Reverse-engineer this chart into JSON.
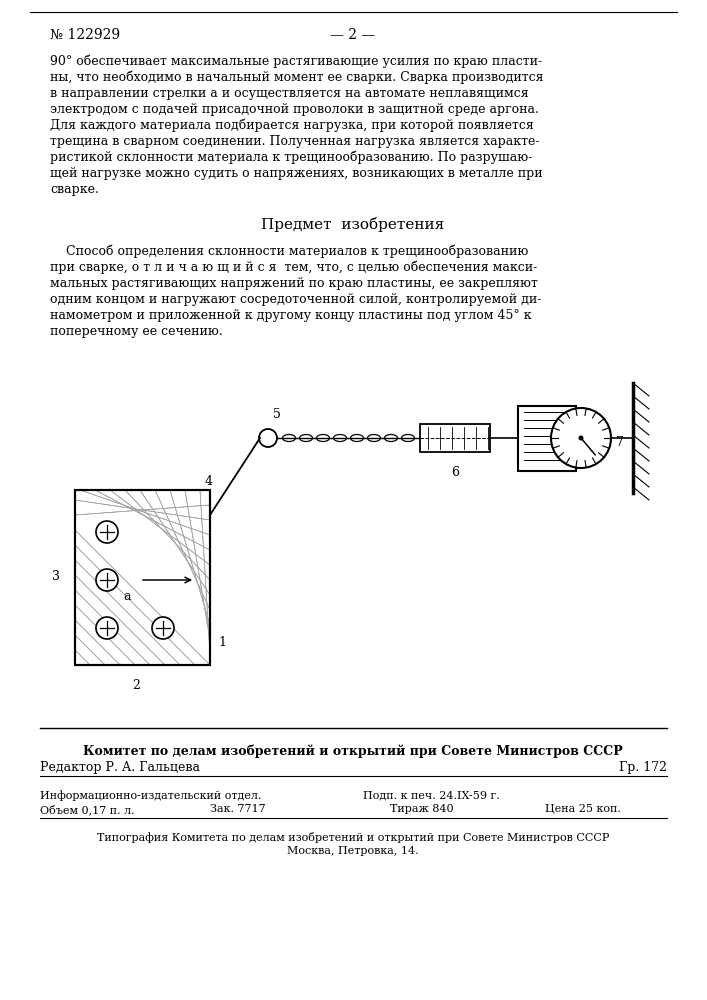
{
  "bg_color": "#ffffff",
  "header_number": "№ 122929",
  "header_page": "— 2 —",
  "paragraph1_lines": [
    "90° обеспечивает максимальные растягивающие усилия по краю пласти-",
    "ны, что необходимо в начальный момент ее сварки. Сварка производится",
    "в направлении стрелки а и осуществляется на автомате неплавящимся",
    "электродом с подачей присадочной проволоки в защитной среде аргона.",
    "Для каждого материала подбирается нагрузка, при которой появляется",
    "трещина в сварном соединении. Полученная нагрузка является характе-",
    "ристикой склонности материала к трещинообразованию. По разрушаю-",
    "щей нагрузке можно судить о напряжениях, возникающих в металле при",
    "сварке."
  ],
  "section_title": "Предмет  изобретения",
  "paragraph2_lines": [
    "    Способ определения склонности материалов к трещинообразованию",
    "при сварке, о т л и ч а ю щ и й с я  тем, что, с целью обеспечения макси-",
    "мальных растягивающих напряжений по краю пластины, ее закрепляют",
    "одним концом и нагружают сосредоточенной силой, контролируемой ди-",
    "намометром и приложенной к другому концу пластины под углом 45° к",
    "поперечному ее сечению."
  ],
  "footer_committee": "Комитет по делам изобретений и открытий при Совете Министров СССР",
  "footer_editor": "Редактор Р. А. Гальцева",
  "footer_gr": "Гр. 172",
  "footer_col1_line1": "Информационно-издательский отдел.",
  "footer_col1_line2": "Объем 0,17 п. л.",
  "footer_col2_line1": "Подп. к печ. 24.IX-59 г.",
  "footer_col2_line2": "Зак. 7717",
  "footer_col3_line1": "Тираж 840",
  "footer_col3_line2": "Цена 25 коп.",
  "footer_tipografia": "Типография Комитета по делам изобретений и открытий при Совете Министров СССР",
  "footer_address": "Москва, Петровка, 14."
}
